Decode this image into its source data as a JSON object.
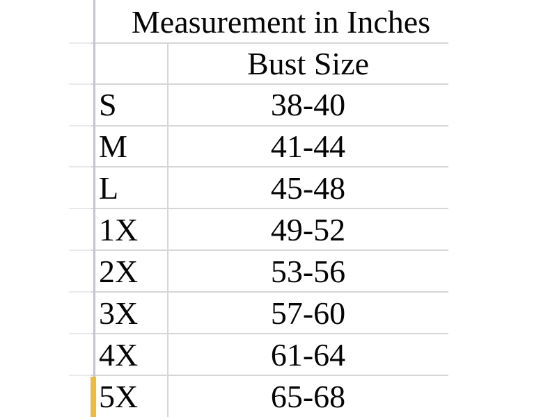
{
  "chart_data": {
    "type": "table",
    "title": "Measurement in Inches",
    "column_headers": [
      "",
      "Bust Size"
    ],
    "rows": [
      [
        "S",
        "38-40"
      ],
      [
        "M",
        "41-44"
      ],
      [
        "L",
        "45-48"
      ],
      [
        "1X",
        "49-52"
      ],
      [
        "2X",
        "53-56"
      ],
      [
        "3X",
        "57-60"
      ],
      [
        "4X",
        "61-64"
      ],
      [
        "5X",
        "65-68"
      ]
    ]
  },
  "colors": {
    "background": "#ffffff",
    "text": "#050505",
    "grid_line": "#d6d6d6",
    "left_border": "#c2c5cb",
    "row_highlight": "#edba42"
  }
}
